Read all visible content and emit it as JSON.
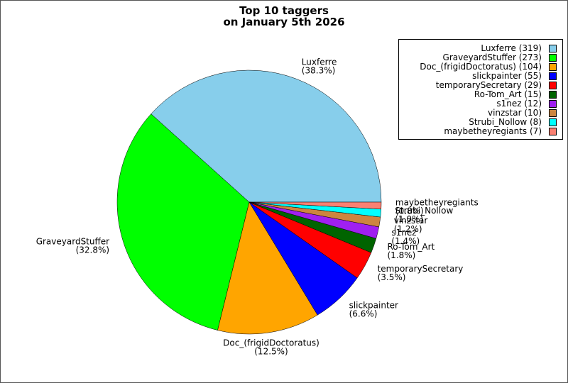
{
  "title": {
    "line1": "Top 10 taggers",
    "line2": "on January 5th 2026"
  },
  "chart_data": {
    "type": "pie",
    "title": "Top 10 taggers on January 5th 2026",
    "legend_position": "top-right",
    "slices": [
      {
        "label": "Luxferre",
        "value": 319,
        "percent": "(38.3%)",
        "legend": "Luxferre (319)",
        "color": "#87ceeb"
      },
      {
        "label": "GraveyardStuffer",
        "value": 273,
        "percent": "(32.8%)",
        "legend": "GraveyardStuffer (273)",
        "color": "#00ff00"
      },
      {
        "label": "Doc_(frigidDoctoratus)",
        "value": 104,
        "percent": "(12.5%)",
        "legend": "Doc_(frigidDoctoratus) (104)",
        "color": "#ffa500"
      },
      {
        "label": "slickpainter",
        "value": 55,
        "percent": "(6.6%)",
        "legend": "slickpainter (55)",
        "color": "#0000ff"
      },
      {
        "label": "temporarySecretary",
        "value": 29,
        "percent": "(3.5%)",
        "legend": "temporarySecretary (29)",
        "color": "#ff0000"
      },
      {
        "label": "Ro-Tom_Art",
        "value": 15,
        "percent": "(1.8%)",
        "legend": "Ro-Tom_Art (15)",
        "color": "#006400"
      },
      {
        "label": "s1nez",
        "value": 12,
        "percent": "(1.4%)",
        "legend": "s1nez (12)",
        "color": "#a020f0"
      },
      {
        "label": "vinzstar",
        "value": 10,
        "percent": "(1.2%)",
        "legend": "vinzstar (10)",
        "color": "#cd853f"
      },
      {
        "label": "Strubi_Nollow",
        "value": 8,
        "percent": "(1.0%)",
        "legend": "Strubi_Nollow (8)",
        "color": "#00ffff"
      },
      {
        "label": "maybetheyregiants",
        "value": 7,
        "percent": "(0.8%)",
        "legend": "maybetheyregiants (7)",
        "color": "#fa8072"
      }
    ]
  }
}
